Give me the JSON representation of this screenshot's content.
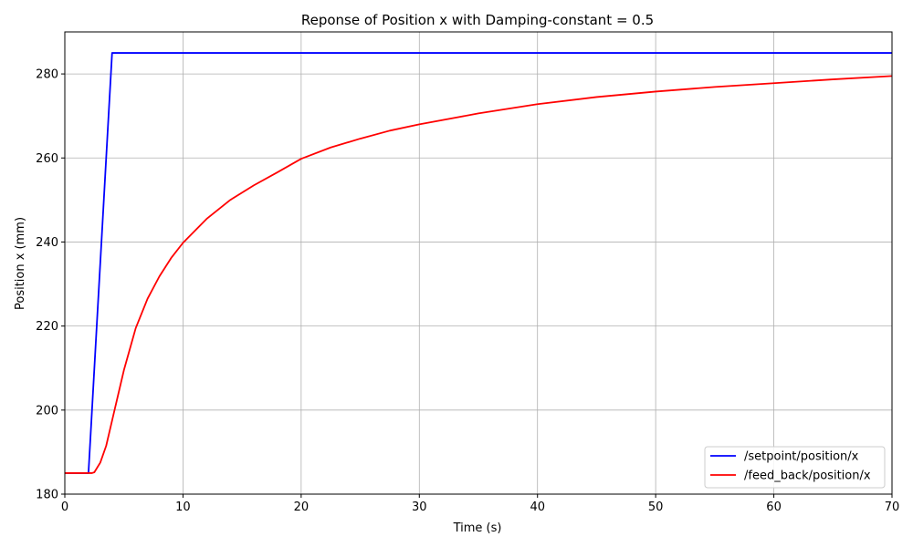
{
  "chart_data": {
    "type": "line",
    "title": "Reponse of Position x with Damping-constant = 0.5",
    "xlabel": "Time (s)",
    "ylabel": "Position x (mm)",
    "xlim": [
      0,
      70
    ],
    "ylim": [
      180,
      290
    ],
    "xticks": [
      0,
      10,
      20,
      30,
      40,
      50,
      60,
      70
    ],
    "yticks": [
      180,
      200,
      220,
      240,
      260,
      280
    ],
    "grid": true,
    "legend_position": "lower-right",
    "series": [
      {
        "name": "/setpoint/position/x",
        "color": "#0000ff",
        "points": [
          [
            0,
            185
          ],
          [
            2.0,
            185
          ],
          [
            4.0,
            285
          ],
          [
            70,
            285
          ]
        ]
      },
      {
        "name": "/feed_back/position/x",
        "color": "#ff0000",
        "points": [
          [
            0,
            185
          ],
          [
            2.3,
            185
          ],
          [
            2.5,
            185.2
          ],
          [
            3.0,
            187.5
          ],
          [
            3.5,
            191.5
          ],
          [
            4.0,
            197.5
          ],
          [
            5.0,
            209.5
          ],
          [
            6.0,
            219.5
          ],
          [
            7.0,
            226.5
          ],
          [
            8.0,
            231.8
          ],
          [
            9.0,
            236.2
          ],
          [
            10.0,
            239.8
          ],
          [
            12.0,
            245.5
          ],
          [
            14.0,
            250.0
          ],
          [
            16.0,
            253.5
          ],
          [
            18.0,
            256.6
          ],
          [
            20.0,
            259.8
          ],
          [
            22.5,
            262.5
          ],
          [
            25.0,
            264.6
          ],
          [
            27.5,
            266.5
          ],
          [
            30.0,
            268.0
          ],
          [
            35.0,
            270.6
          ],
          [
            40.0,
            272.8
          ],
          [
            45.0,
            274.5
          ],
          [
            50.0,
            275.8
          ],
          [
            55.0,
            276.9
          ],
          [
            60.0,
            277.8
          ],
          [
            65.0,
            278.7
          ],
          [
            70.0,
            279.5
          ]
        ]
      }
    ]
  }
}
